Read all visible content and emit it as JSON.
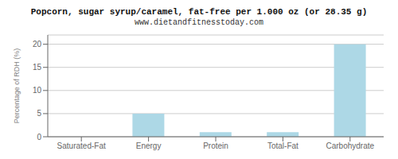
{
  "chart_data": {
    "type": "bar",
    "title": "Popcorn, sugar syrup/caramel, fat-free per 1.000 oz (or 28.35 g)",
    "subtitle": "www.dietandfitnesstoday.com",
    "categories": [
      "Saturated-Fat",
      "Energy",
      "Protein",
      "Total-Fat",
      "Carbohydrate"
    ],
    "values": [
      0,
      5,
      1,
      1,
      20
    ],
    "color": "#add8e6",
    "ylabel": "Percentage of RDH (%)",
    "ylim": [
      0,
      22
    ],
    "yticks": [
      0,
      5,
      10,
      15,
      20
    ],
    "grid": true
  }
}
